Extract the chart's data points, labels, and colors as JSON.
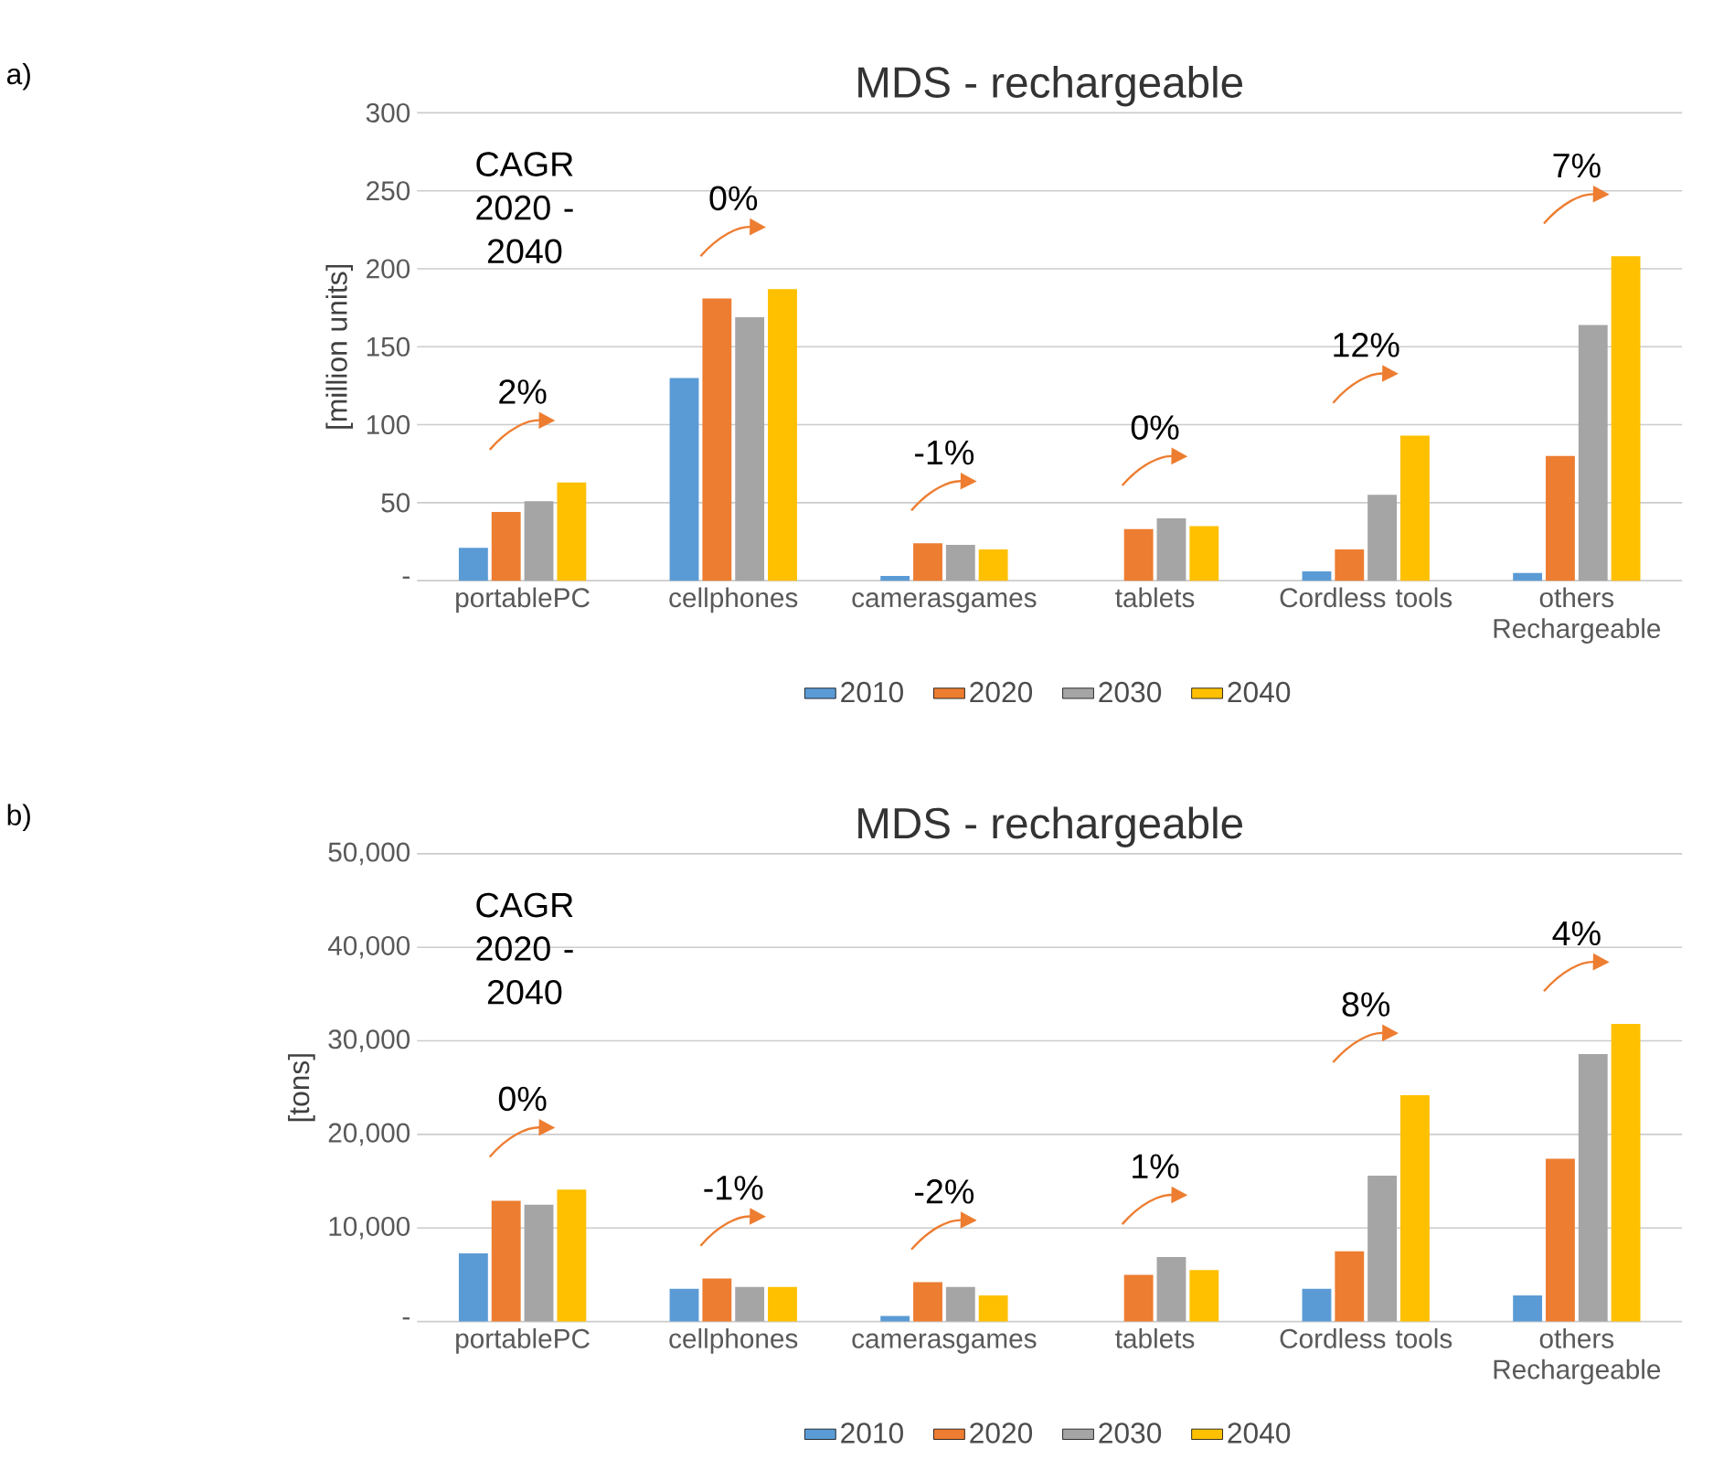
{
  "chart_data": [
    {
      "type": "bar",
      "title": "MDS - rechargeable",
      "ylabel": "[million units]",
      "categories": [
        "portablePC",
        "cellphones",
        "camerasgames",
        "tablets",
        "Cordless tools",
        "others Rechargeable"
      ],
      "series": [
        {
          "name": "2010",
          "color": "#5b9bd5",
          "values": [
            21,
            130,
            3,
            null,
            6,
            5
          ]
        },
        {
          "name": "2020",
          "color": "#ed7d31",
          "values": [
            44,
            181,
            24,
            33,
            20,
            80
          ]
        },
        {
          "name": "2030",
          "color": "#a5a5a5",
          "values": [
            51,
            169,
            23,
            40,
            55,
            164
          ]
        },
        {
          "name": "2040",
          "color": "#ffc000",
          "values": [
            63,
            187,
            20,
            35,
            93,
            208
          ]
        }
      ],
      "ylim": [
        0,
        300
      ],
      "yticks": [
        {
          "value": 0,
          "label": "-"
        },
        50,
        100,
        150,
        200,
        250,
        300
      ],
      "grid": "y",
      "legend": "bottom",
      "annotations": [
        "a)",
        "CAGR 2020 - 2040",
        "2%",
        "0%",
        "-1%",
        "0%",
        "12%",
        "7%"
      ]
    },
    {
      "type": "bar",
      "title": "MDS - rechargeable",
      "ylabel": "[tons]",
      "categories": [
        "portablePC",
        "cellphones",
        "camerasgames",
        "tablets",
        "Cordless tools",
        "others Rechargeable"
      ],
      "series": [
        {
          "name": "2010",
          "color": "#5b9bd5",
          "values": [
            7300,
            3500,
            600,
            null,
            3500,
            2800
          ]
        },
        {
          "name": "2020",
          "color": "#ed7d31",
          "values": [
            12900,
            4600,
            4200,
            5000,
            7500,
            17400
          ]
        },
        {
          "name": "2030",
          "color": "#a5a5a5",
          "values": [
            12500,
            3700,
            3700,
            6900,
            15600,
            28600
          ]
        },
        {
          "name": "2040",
          "color": "#ffc000",
          "values": [
            14100,
            3700,
            2800,
            5500,
            24200,
            31800
          ]
        }
      ],
      "ylim": [
        0,
        50000
      ],
      "yticks": [
        {
          "value": 0,
          "label": "-"
        },
        {
          "value": 10000,
          "label": "10,000"
        },
        {
          "value": 20000,
          "label": "20,000"
        },
        {
          "value": 30000,
          "label": "30,000"
        },
        {
          "value": 40000,
          "label": "40,000"
        },
        {
          "value": 50000,
          "label": "50,000"
        }
      ],
      "grid": "y",
      "legend": "bottom",
      "annotations": [
        "b)",
        "CAGR 2020 - 2040",
        "0%",
        "-1%",
        "-2%",
        "1%",
        "8%",
        "4%"
      ]
    }
  ]
}
